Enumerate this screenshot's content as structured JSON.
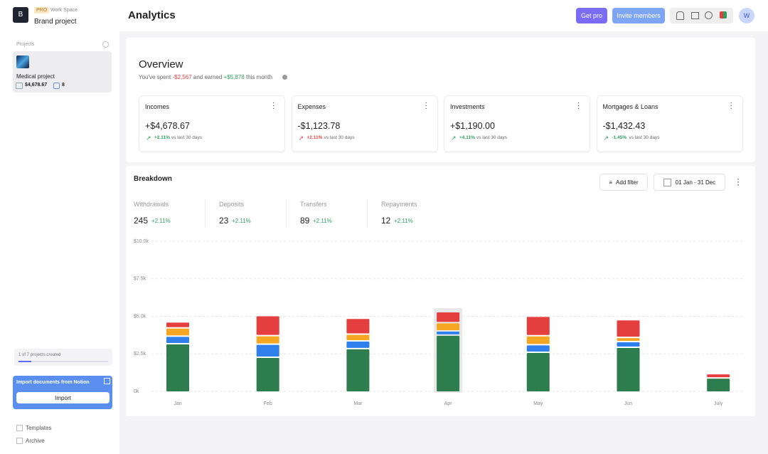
{
  "sidebar": {
    "badge": "PRO",
    "workspace": "Work Space",
    "project": "Brand project",
    "projects_label": "Projects",
    "project_card": {
      "name": "Medical project",
      "amount": "$4,678.67",
      "count": "8"
    },
    "progress": "1 of 7 projects created",
    "notion": {
      "title": "Import documents from Notion",
      "button": "Import"
    },
    "links": [
      "Templates",
      "Archive"
    ]
  },
  "header": {
    "title": "Analytics",
    "get_pro": "Get pro",
    "invite": "Invite members",
    "avatar": "W"
  },
  "overview": {
    "title": "Overview",
    "spent_text": "You've spent",
    "spent": "-$2,567",
    "earned_text": "and earned",
    "earned": "+$5,878",
    "period": "this month",
    "cards": [
      {
        "name": "Incomes",
        "value": "+$4,678.67",
        "change": "+2.11%",
        "note": "vs last 30 days",
        "color": "#2e9e5b"
      },
      {
        "name": "Expenses",
        "value": "-$1,123.78",
        "change": "+2.11%",
        "note": "vs last 30 days",
        "color": "#e53e3e"
      },
      {
        "name": "Investments",
        "value": "+$1,190.00",
        "change": "+4.11%",
        "note": "vs last 30 days",
        "color": "#2e9e5b"
      },
      {
        "name": "Mortgages & Loans",
        "value": "-$1,432.43",
        "change": "-1.45%",
        "note": "vs last 30 days",
        "color": "#2e9e5b"
      }
    ]
  },
  "breakdown": {
    "title": "Breakdown",
    "filter": "Add filter",
    "date_range": "01 Jan - 31 Dec",
    "stats": [
      {
        "label": "Withdrawals",
        "value": 245,
        "change": "+2.11%"
      },
      {
        "label": "Deposits",
        "value": 23,
        "change": "+2.11%"
      },
      {
        "label": "Transfers",
        "value": 89,
        "change": "+2.11%"
      },
      {
        "label": "Repayments",
        "value": 12,
        "change": "+2.11%"
      }
    ]
  },
  "chart_data": {
    "type": "stacked_bar",
    "categories": [
      "Jan",
      "Feb",
      "Mar",
      "Apr",
      "May",
      "Jun",
      "July"
    ],
    "series": [
      {
        "color": "#2e7d4f",
        "values": [
          3130,
          2230,
          2800,
          3700,
          2560,
          2890,
          850
        ]
      },
      {
        "color": "#2f80ed",
        "values": [
          500,
          870,
          520,
          280,
          500,
          380,
          0
        ]
      },
      {
        "color": "#f5a623",
        "values": [
          550,
          570,
          450,
          550,
          600,
          280,
          0
        ]
      },
      {
        "color": "#e53e3e",
        "values": [
          400,
          1330,
          1050,
          730,
          1300,
          1180,
          280
        ]
      }
    ],
    "ylim": [
      0,
      10000
    ],
    "yticks": [
      {
        "value": 0,
        "label": "0k"
      },
      {
        "value": 2500,
        "label": "$2.5k"
      },
      {
        "value": 5000,
        "label": "$5.0k"
      },
      {
        "value": 7500,
        "label": "$7.5k"
      },
      {
        "value": 10000,
        "label": "$10.0k"
      }
    ],
    "grid": true,
    "highlight": 3
  }
}
